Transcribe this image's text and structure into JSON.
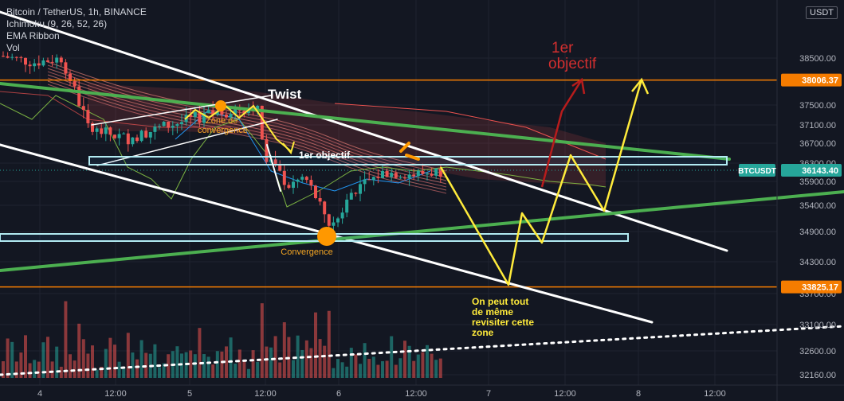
{
  "legend": {
    "title": "Bitcoin / TetherUS, 1h, BINANCE",
    "indicator1": "Ichimoku (9, 26, 52, 26)",
    "indicator2": "EMA Ribbon",
    "indicator3": "Vol"
  },
  "currency_label": "USDT",
  "chart_data": {
    "type": "candlestick",
    "symbol": "Bitcoin / TetherUS",
    "timeframe": "1h",
    "exchange": "BINANCE",
    "y_axis": {
      "ticks": [
        38500,
        38000,
        37500,
        37100,
        36700,
        36300,
        35900,
        35400,
        34900,
        34300,
        33700,
        33100,
        32600,
        32160
      ],
      "price_axis_range": [
        32000,
        39300
      ]
    },
    "x_axis": {
      "ticks": [
        "4",
        "12:00",
        "5",
        "12:00",
        "6",
        "12:00",
        "7",
        "12:00",
        "8",
        "12:00"
      ]
    },
    "price_labels": [
      {
        "text": "38006.37",
        "value": 38006.37,
        "color": "#f57c00"
      },
      {
        "text": "BTCUSDT",
        "color": "#26a69a"
      },
      {
        "text": "36143.40",
        "value": 36143.4,
        "color": "#26a69a"
      },
      {
        "text": "33825.17",
        "value": 33825.17,
        "color": "#f57c00"
      }
    ],
    "horizontal_levels": [
      {
        "value": 38006.37,
        "color": "#f57c00"
      },
      {
        "value": 33825.17,
        "color": "#f57c00"
      }
    ],
    "annotations": [
      {
        "text": "Twist",
        "color": "#ffffff"
      },
      {
        "text": "1er objectif",
        "color": "#ffffff"
      },
      {
        "text": "Zone de convergence",
        "color": "#f5a623"
      },
      {
        "text": "Convergence",
        "color": "#f5a623"
      },
      {
        "text": "1er objectif",
        "color": "#d32f2f"
      },
      {
        "text": "On peut tout de même revisiter cette zone",
        "color": "#ffeb3b"
      }
    ],
    "colors": {
      "up": "#26a69a",
      "down": "#ef5350",
      "background": "#131722"
    }
  }
}
